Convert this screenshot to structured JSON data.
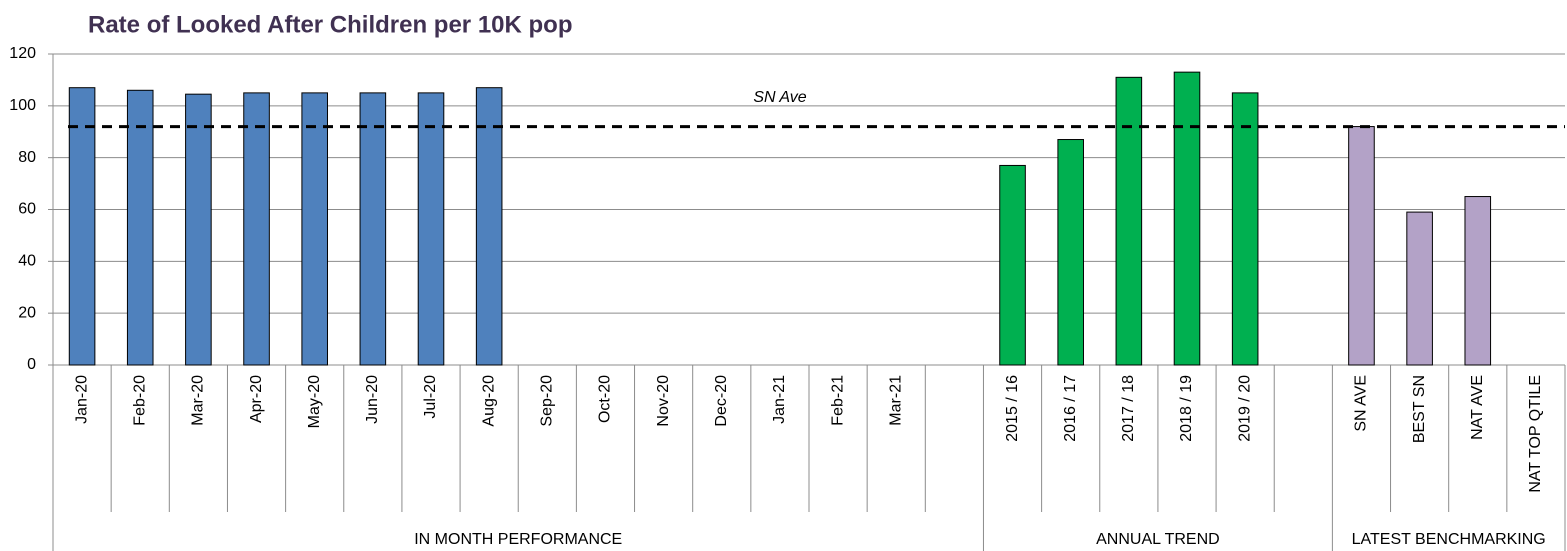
{
  "chart_data": {
    "type": "bar",
    "title": "Rate of Looked After Children per 10K pop",
    "ylim": [
      0,
      120
    ],
    "yticks": [
      0,
      20,
      40,
      60,
      80,
      100,
      120
    ],
    "grid": true,
    "groups": [
      {
        "name": "IN MONTH PERFORMANCE",
        "color": "#4f81bd",
        "categories": [
          "Jan-20",
          "Feb-20",
          "Mar-20",
          "Apr-20",
          "May-20",
          "Jun-20",
          "Jul-20",
          "Aug-20",
          "Sep-20",
          "Oct-20",
          "Nov-20",
          "Dec-20",
          "Jan-21",
          "Feb-21",
          "Mar-21",
          null
        ],
        "values": [
          107,
          106,
          104.5,
          105,
          105,
          105,
          105,
          107,
          null,
          null,
          null,
          null,
          null,
          null,
          null,
          null
        ]
      },
      {
        "name": "ANNUAL TREND",
        "color": "#00b050",
        "categories": [
          "2015 / 16",
          "2016 / 17",
          "2017 / 18",
          "2018 / 19",
          "2019 / 20",
          null
        ],
        "values": [
          77,
          87,
          111,
          113,
          105,
          null
        ]
      },
      {
        "name": "LATEST BENCHMARKING",
        "color": "#b3a2c7",
        "categories": [
          "SN AVE",
          "BEST SN",
          "NAT AVE",
          "NAT TOP QTILE"
        ],
        "values": [
          92,
          59,
          65,
          null
        ]
      }
    ],
    "reference_line": {
      "label": "SN Ave",
      "value": 92,
      "color": "#000000"
    }
  }
}
